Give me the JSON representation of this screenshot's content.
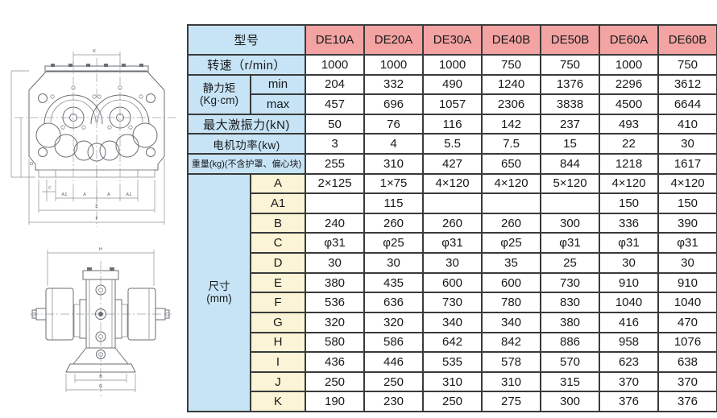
{
  "colors": {
    "header_pink": "#f2a3a2",
    "label_blue": "#c7e4f6",
    "dim_yellow": "#fbf4d6",
    "border": "#3a3a3a",
    "text": "#17181a"
  },
  "table": {
    "header": {
      "model_label": "型号",
      "models": [
        "DE10A",
        "DE20A",
        "DE30A",
        "DE40B",
        "DE50B",
        "DE60A",
        "DE60B"
      ]
    },
    "speed": {
      "label": "转速（r/min）",
      "values": [
        "1000",
        "1000",
        "1000",
        "750",
        "750",
        "1000",
        "750"
      ]
    },
    "static_moment": {
      "label_line1": "静力矩",
      "label_line2": "(Kg·cm)",
      "min": {
        "label": "min",
        "values": [
          "204",
          "332",
          "490",
          "1240",
          "1376",
          "2296",
          "3612"
        ]
      },
      "max": {
        "label": "max",
        "values": [
          "457",
          "696",
          "1057",
          "2306",
          "3838",
          "4500",
          "6644"
        ]
      }
    },
    "excitation_force": {
      "label": "最大激振力(kN)",
      "values": [
        "50",
        "76",
        "116",
        "142",
        "237",
        "493",
        "410"
      ]
    },
    "motor_power": {
      "label": "电机功率(kw)",
      "values": [
        "3",
        "4",
        "5.5",
        "7.5",
        "15",
        "22",
        "30"
      ]
    },
    "weight": {
      "label": "重量(kg)(不含护罩、偏心块)",
      "values": [
        "255",
        "310",
        "427",
        "650",
        "844",
        "1218",
        "1617"
      ]
    },
    "dimensions": {
      "label_line1": "尺寸",
      "label_line2": "(mm)",
      "rows": [
        {
          "letter": "A",
          "values": [
            "2×125",
            "1×75",
            "4×120",
            "4×120",
            "5×120",
            "4×120",
            "4×120"
          ]
        },
        {
          "letter": "A1",
          "values": [
            "",
            "115",
            "",
            "",
            "",
            "150",
            "150"
          ]
        },
        {
          "letter": "B",
          "values": [
            "240",
            "260",
            "260",
            "260",
            "300",
            "336",
            "390"
          ]
        },
        {
          "letter": "C",
          "values": [
            "φ31",
            "φ25",
            "φ31",
            "φ25",
            "φ31",
            "φ31",
            "φ31"
          ]
        },
        {
          "letter": "D",
          "values": [
            "30",
            "30",
            "30",
            "35",
            "25",
            "30",
            "30"
          ]
        },
        {
          "letter": "E",
          "values": [
            "380",
            "435",
            "600",
            "600",
            "730",
            "910",
            "910"
          ]
        },
        {
          "letter": "F",
          "values": [
            "536",
            "636",
            "730",
            "780",
            "830",
            "1040",
            "1040"
          ]
        },
        {
          "letter": "G",
          "values": [
            "320",
            "320",
            "340",
            "340",
            "380",
            "416",
            "470"
          ]
        },
        {
          "letter": "H",
          "values": [
            "580",
            "586",
            "642",
            "842",
            "886",
            "958",
            "1076"
          ]
        },
        {
          "letter": "I",
          "values": [
            "436",
            "446",
            "535",
            "578",
            "570",
            "623",
            "638"
          ]
        },
        {
          "letter": "J",
          "values": [
            "250",
            "250",
            "310",
            "310",
            "315",
            "370",
            "370"
          ]
        },
        {
          "letter": "K",
          "values": [
            "190",
            "230",
            "250",
            "275",
            "300",
            "376",
            "376"
          ]
        }
      ]
    }
  },
  "drawings": {
    "top_view": {
      "dim_labels": {
        "k": "K",
        "d": "D",
        "c": "C",
        "a1_left": "A1",
        "a_left": "A",
        "a_right": "A",
        "a1_right": "A1",
        "e": "E",
        "f": "F"
      }
    },
    "front_view": {
      "dim_labels": {
        "h": "H",
        "b": "B",
        "g": "G"
      }
    }
  }
}
